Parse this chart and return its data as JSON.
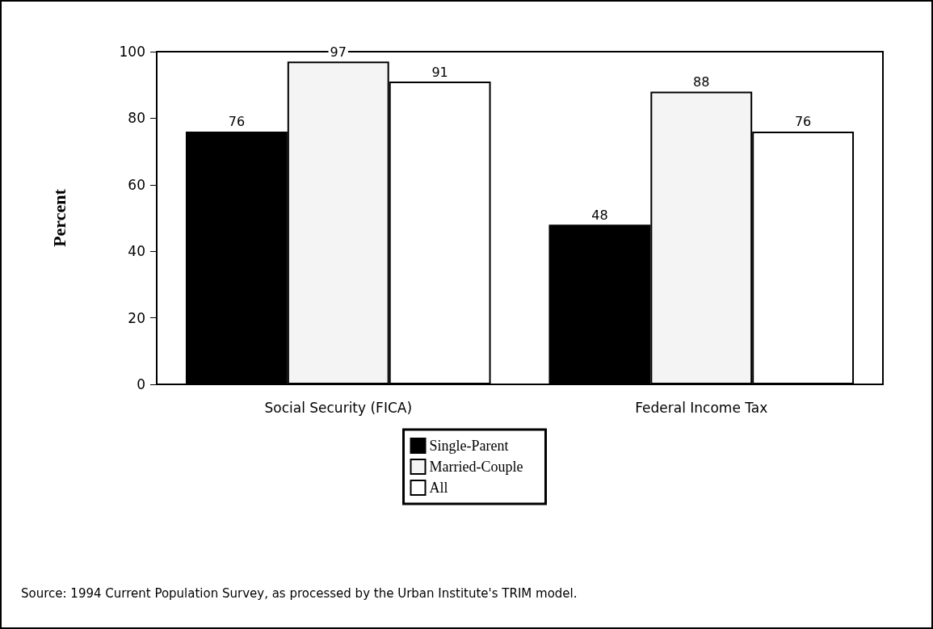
{
  "chart_data": {
    "type": "bar",
    "ylabel": "Percent",
    "categories": [
      "Social Security (FICA)",
      "Federal Income Tax"
    ],
    "series": [
      {
        "name": "Single-Parent",
        "color": "#000000",
        "values": [
          76,
          48
        ]
      },
      {
        "name": "Married-Couple",
        "color": "#f4f4f4",
        "values": [
          97,
          88
        ]
      },
      {
        "name": "All",
        "color": "#ffffff",
        "values": [
          91,
          76
        ]
      }
    ],
    "ylim": [
      0,
      100
    ],
    "yticks": [
      0,
      20,
      40,
      60,
      80,
      100
    ],
    "grid": false,
    "legend": "bottom",
    "data_labels": true,
    "annotations": [
      "Source: 1994 Current Population Survey, as processed by the Urban Institute's TRIM model."
    ]
  }
}
